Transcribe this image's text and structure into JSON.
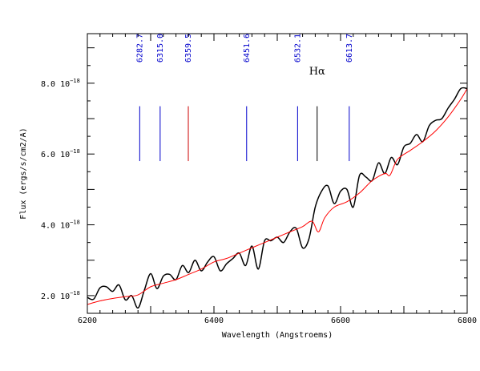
{
  "chart_data": {
    "type": "line",
    "title": "",
    "xlabel": "Wavelength (Angstroems)",
    "ylabel": "Flux (ergs/s/cm2/A)",
    "xlim": [
      6200,
      6800
    ],
    "ylim": [
      1.5e-18,
      9.4e-18
    ],
    "x_ticks": [
      {
        "value": 6200,
        "label": "6200"
      },
      {
        "value": 6400,
        "label": "6400"
      },
      {
        "value": 6600,
        "label": "6600"
      },
      {
        "value": 6800,
        "label": "6800"
      }
    ],
    "y_ticks": [
      {
        "value": 2e-18,
        "mantissa": "2.0",
        "base": "10",
        "exp": "−18"
      },
      {
        "value": 4e-18,
        "mantissa": "4.0",
        "base": "10",
        "exp": "−18"
      },
      {
        "value": 6e-18,
        "mantissa": "6.0",
        "base": "10",
        "exp": "−18"
      },
      {
        "value": 8e-18,
        "mantissa": "8.0",
        "base": "10",
        "exp": "−18"
      }
    ],
    "grid": false,
    "legend": "none",
    "series": [
      {
        "color": "#000000",
        "x": [
          6200,
          6210,
          6220,
          6230,
          6240,
          6250,
          6260,
          6270,
          6280,
          6290,
          6300,
          6310,
          6320,
          6330,
          6340,
          6350,
          6360,
          6370,
          6380,
          6390,
          6400,
          6410,
          6420,
          6430,
          6440,
          6450,
          6460,
          6470,
          6480,
          6490,
          6500,
          6510,
          6520,
          6530,
          6540,
          6550,
          6560,
          6570,
          6580,
          6590,
          6600,
          6610,
          6620,
          6630,
          6640,
          6650,
          6660,
          6670,
          6680,
          6690,
          6700,
          6710,
          6720,
          6730,
          6740,
          6750,
          6760,
          6770,
          6780,
          6790,
          6800
        ],
        "y": [
          1.95,
          1.9,
          2.22,
          2.25,
          2.12,
          2.3,
          1.88,
          2.0,
          1.65,
          2.15,
          2.62,
          2.2,
          2.55,
          2.6,
          2.45,
          2.85,
          2.65,
          3.0,
          2.7,
          2.95,
          3.1,
          2.7,
          2.9,
          3.05,
          3.2,
          2.85,
          3.4,
          2.75,
          3.55,
          3.55,
          3.65,
          3.5,
          3.8,
          3.9,
          3.35,
          3.6,
          4.5,
          4.95,
          5.1,
          4.6,
          4.95,
          5.0,
          4.5,
          5.4,
          5.35,
          5.25,
          5.75,
          5.45,
          5.9,
          5.7,
          6.2,
          6.3,
          6.55,
          6.35,
          6.8,
          6.95,
          7.0,
          7.3,
          7.55,
          7.85,
          7.85
        ]
      },
      {
        "color": "#ff0000",
        "x": [
          6200,
          6220,
          6240,
          6260,
          6280,
          6300,
          6320,
          6340,
          6360,
          6380,
          6400,
          6420,
          6440,
          6460,
          6480,
          6500,
          6520,
          6540,
          6555,
          6565,
          6575,
          6590,
          6610,
          6630,
          6650,
          6670,
          6678,
          6690,
          6710,
          6730,
          6750,
          6770,
          6790,
          6800
        ],
        "y": [
          1.75,
          1.85,
          1.92,
          1.97,
          2.02,
          2.25,
          2.35,
          2.45,
          2.6,
          2.75,
          2.95,
          3.05,
          3.2,
          3.35,
          3.5,
          3.65,
          3.8,
          3.95,
          4.1,
          3.8,
          4.2,
          4.5,
          4.65,
          4.9,
          5.25,
          5.45,
          5.4,
          5.85,
          6.1,
          6.35,
          6.65,
          7.05,
          7.55,
          7.85
        ]
      }
    ],
    "annotations": [
      {
        "x": 6282.7,
        "label": "6282.7",
        "color": "#0000cc"
      },
      {
        "x": 6315.0,
        "label": "6315.0",
        "color": "#0000cc"
      },
      {
        "x": 6359.5,
        "label": "6359.5",
        "color": "#cc0000"
      },
      {
        "x": 6451.6,
        "label": "6451.6",
        "color": "#0000cc"
      },
      {
        "x": 6532.1,
        "label": "6532.1",
        "color": "#0000cc"
      },
      {
        "x": 6563,
        "label": "Hα",
        "color": "#000000"
      },
      {
        "x": 6613.7,
        "label": "6613.7",
        "color": "#0000cc"
      }
    ],
    "annotation_y_range": [
      5.8e-18,
      7.35e-18
    ],
    "y_scale": 1e-18
  }
}
